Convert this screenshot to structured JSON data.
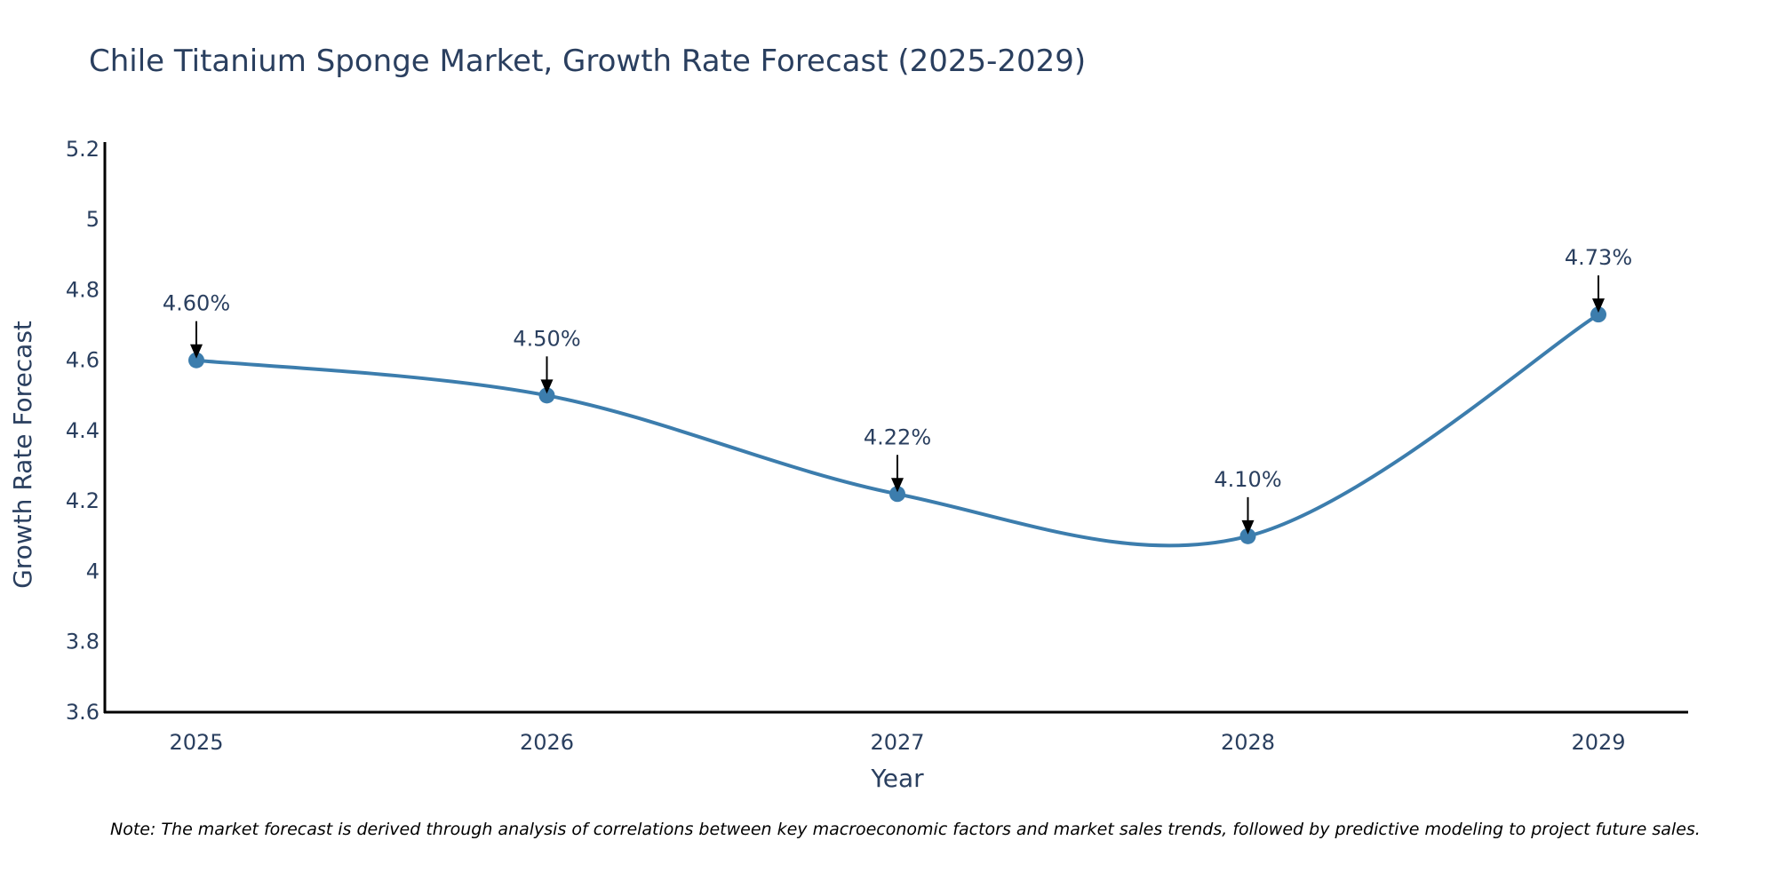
{
  "chart_data": {
    "type": "line",
    "title": "Chile Titanium Sponge Market, Growth Rate Forecast (2025-2029)",
    "xlabel": "Year",
    "ylabel": "Growth Rate Forecast",
    "categories": [
      "2025",
      "2026",
      "2027",
      "2028",
      "2029"
    ],
    "series": [
      {
        "name": "Growth Rate Forecast",
        "values": [
          4.6,
          4.5,
          4.22,
          4.1,
          4.73
        ],
        "color": "#3c7dad"
      }
    ],
    "data_labels": [
      "4.60%",
      "4.50%",
      "4.22%",
      "4.10%",
      "4.73%"
    ],
    "ylim": [
      3.6,
      5.22
    ],
    "yticks": [
      3.6,
      3.8,
      4,
      4.2,
      4.4,
      4.6,
      4.8,
      5,
      5.2
    ],
    "ytick_labels": [
      "3.6",
      "3.8",
      "4",
      "4.2",
      "4.4",
      "4.6",
      "4.8",
      "5",
      "5.2"
    ],
    "grid": false,
    "line_shape": "spline",
    "legend": "none",
    "note": "Note: The market forecast is derived through analysis of correlations between key macroeconomic factors and market sales trends, followed by predictive modeling to project future sales."
  }
}
